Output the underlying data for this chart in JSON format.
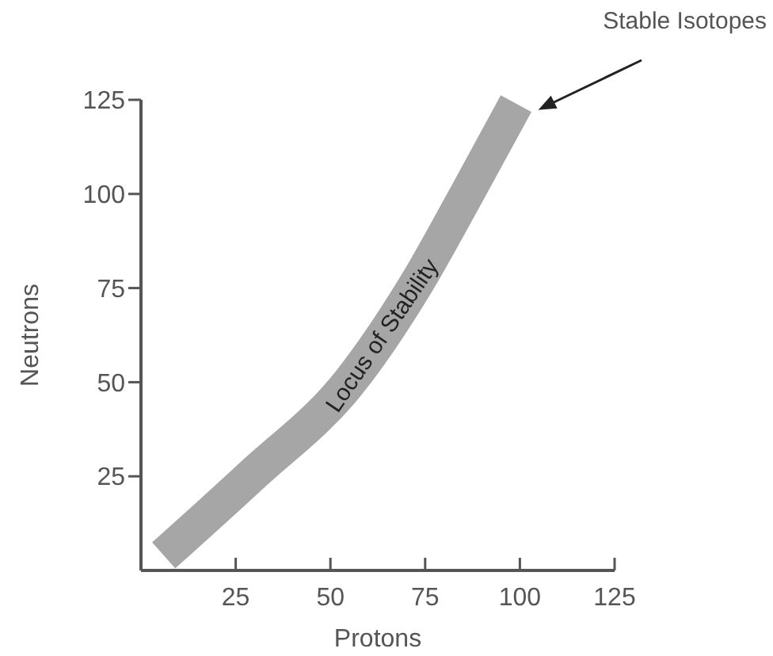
{
  "chart_data": {
    "type": "line",
    "xlabel": "Protons",
    "ylabel": "Neutrons",
    "xlim": [
      0,
      125
    ],
    "ylim": [
      0,
      125
    ],
    "xticks": [
      25,
      50,
      75,
      100,
      125
    ],
    "yticks": [
      25,
      50,
      75,
      100,
      125
    ],
    "grid": false,
    "marker": "none",
    "line_style": "solid",
    "series": [
      {
        "name": "Locus of Stability",
        "color": "#a6a6a6",
        "x": [
          6,
          29,
          55,
          72,
          86,
          99
        ],
        "values": [
          4,
          25,
          50,
          75,
          100,
          124
        ]
      }
    ],
    "annotations": [
      "Stable Isotopes"
    ]
  }
}
